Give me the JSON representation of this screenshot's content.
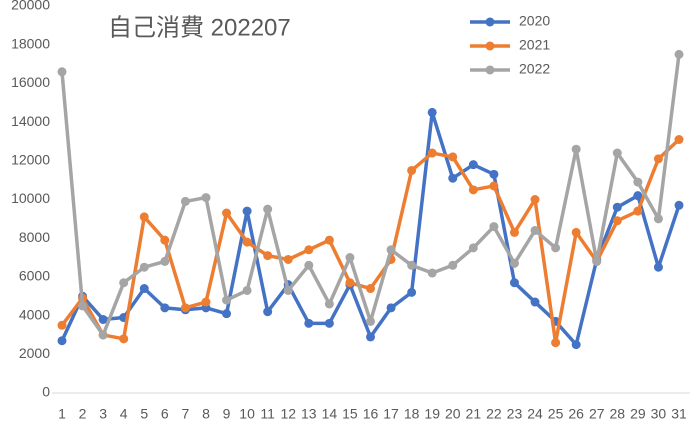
{
  "chart_data": {
    "type": "line",
    "title": "自己消費 202207",
    "categories": [
      1,
      2,
      3,
      4,
      5,
      6,
      7,
      8,
      9,
      10,
      11,
      12,
      13,
      14,
      15,
      16,
      17,
      18,
      19,
      20,
      21,
      22,
      23,
      24,
      25,
      26,
      27,
      28,
      29,
      30,
      31
    ],
    "series": [
      {
        "name": "2020",
        "color": "#4472c4",
        "values": [
          2700,
          5000,
          3800,
          3900,
          5400,
          4400,
          4300,
          4400,
          4100,
          9400,
          4200,
          5600,
          3600,
          3600,
          5600,
          2900,
          4400,
          5200,
          14500,
          11100,
          11800,
          11300,
          5700,
          4700,
          3700,
          2500,
          6900,
          9600,
          10200,
          6500,
          9700
        ]
      },
      {
        "name": "2021",
        "color": "#ed7d31",
        "values": [
          3500,
          4900,
          3000,
          2800,
          9100,
          7900,
          4400,
          4700,
          9300,
          7800,
          7100,
          6900,
          7400,
          7900,
          5700,
          5400,
          6900,
          11500,
          12400,
          12200,
          10500,
          10700,
          8300,
          10000,
          2600,
          8300,
          6800,
          8900,
          9400,
          12100,
          13100
        ]
      },
      {
        "name": "2022",
        "color": "#a5a5a5",
        "values": [
          16600,
          4500,
          3000,
          5700,
          6500,
          6800,
          9900,
          10100,
          4800,
          5300,
          9500,
          5300,
          6600,
          4600,
          7000,
          3700,
          7400,
          6600,
          6200,
          6600,
          7500,
          8600,
          6700,
          8400,
          7500,
          12600,
          6800,
          12400,
          10900,
          9000,
          17500
        ]
      }
    ],
    "ylim": [
      0,
      20000
    ],
    "yticks": [
      0,
      2000,
      4000,
      6000,
      8000,
      10000,
      12000,
      14000,
      16000,
      18000,
      20000
    ],
    "legend": "top-right",
    "grid": false
  }
}
